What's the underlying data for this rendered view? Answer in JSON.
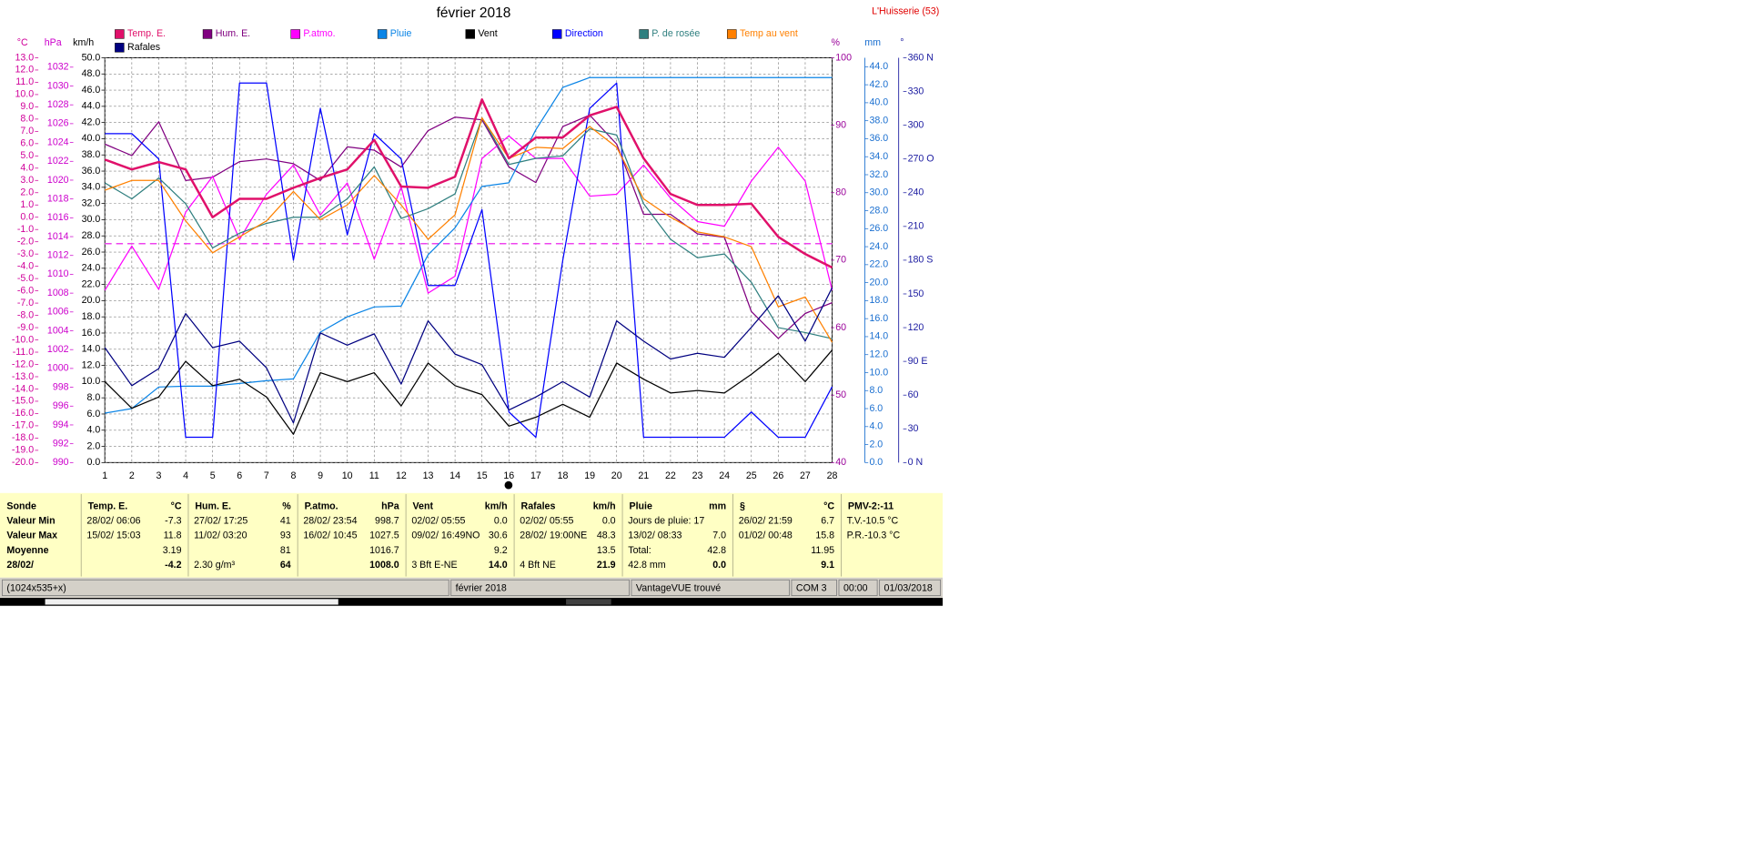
{
  "chart_data": {
    "type": "line",
    "title": "février 2018",
    "location": "L'Huisserie (53)",
    "grid": true,
    "x": [
      1,
      2,
      3,
      4,
      5,
      6,
      7,
      8,
      9,
      10,
      11,
      12,
      13,
      14,
      15,
      16,
      17,
      18,
      19,
      20,
      21,
      22,
      23,
      24,
      25,
      26,
      27,
      28
    ],
    "xlim": [
      1,
      28
    ],
    "xticks": [
      1,
      2,
      3,
      4,
      5,
      6,
      7,
      8,
      9,
      10,
      11,
      12,
      13,
      14,
      15,
      16,
      17,
      18,
      19,
      20,
      21,
      22,
      23,
      24,
      25,
      26,
      27,
      28
    ],
    "y_axes": [
      {
        "label": "°C",
        "color": "#d0009a",
        "lim": [
          -20,
          13
        ],
        "ticks": [
          {
            "value": -20,
            "label": "-20.0"
          },
          {
            "value": -19,
            "label": "-19.0"
          },
          {
            "value": -18,
            "label": "-18.0"
          },
          {
            "value": -17,
            "label": "-17.0"
          },
          {
            "value": -16,
            "label": "-16.0"
          },
          {
            "value": -15,
            "label": "-15.0"
          },
          {
            "value": -14,
            "label": "-14.0"
          },
          {
            "value": -13,
            "label": "-13.0"
          },
          {
            "value": -12,
            "label": "-12.0"
          },
          {
            "value": -11,
            "label": "-11.0"
          },
          {
            "value": -10,
            "label": "-10.0"
          },
          {
            "value": -9,
            "label": "-9.0"
          },
          {
            "value": -8,
            "label": "-8.0"
          },
          {
            "value": -7,
            "label": "-7.0"
          },
          {
            "value": -6,
            "label": "-6.0"
          },
          {
            "value": -5,
            "label": "-5.0"
          },
          {
            "value": -4,
            "label": "-4.0"
          },
          {
            "value": -3,
            "label": "-3.0"
          },
          {
            "value": -2,
            "label": "-2.0"
          },
          {
            "value": -1,
            "label": "-1.0"
          },
          {
            "value": 0,
            "label": "0.0"
          },
          {
            "value": 1,
            "label": "1.0"
          },
          {
            "value": 2,
            "label": "2.0"
          },
          {
            "value": 3,
            "label": "3.0"
          },
          {
            "value": 4,
            "label": "4.0"
          },
          {
            "value": 5,
            "label": "5.0"
          },
          {
            "value": 6,
            "label": "6.0"
          },
          {
            "value": 7,
            "label": "7.0"
          },
          {
            "value": 8,
            "label": "8.0"
          },
          {
            "value": 9,
            "label": "9.0"
          },
          {
            "value": 10,
            "label": "10.0"
          },
          {
            "value": 11,
            "label": "11.0"
          },
          {
            "value": 12,
            "label": "12.0"
          },
          {
            "value": 13,
            "label": "13.0"
          }
        ]
      },
      {
        "label": "hPa",
        "color": "#cc00cc",
        "lim": [
          990,
          1033
        ],
        "ticks": [
          990,
          992,
          994,
          996,
          998,
          1000,
          1002,
          1004,
          1006,
          1008,
          1010,
          1012,
          1014,
          1016,
          1018,
          1020,
          1022,
          1024,
          1026,
          1028,
          1030,
          1032
        ]
      },
      {
        "label": "km/h",
        "color": "#000000",
        "lim": [
          0,
          50
        ],
        "ticks": [
          {
            "value": 0,
            "label": "0.0"
          },
          {
            "value": 2,
            "label": "2.0"
          },
          {
            "value": 4,
            "label": "4.0"
          },
          {
            "value": 6,
            "label": "6.0"
          },
          {
            "value": 8,
            "label": "8.0"
          },
          {
            "value": 10,
            "label": "10.0"
          },
          {
            "value": 12,
            "label": "12.0"
          },
          {
            "value": 14,
            "label": "14.0"
          },
          {
            "value": 16,
            "label": "16.0"
          },
          {
            "value": 18,
            "label": "18.0"
          },
          {
            "value": 20,
            "label": "20.0"
          },
          {
            "value": 22,
            "label": "22.0"
          },
          {
            "value": 24,
            "label": "24.0"
          },
          {
            "value": 26,
            "label": "26.0"
          },
          {
            "value": 28,
            "label": "28.0"
          },
          {
            "value": 30,
            "label": "30.0"
          },
          {
            "value": 32,
            "label": "32.0"
          },
          {
            "value": 34,
            "label": "34.0"
          },
          {
            "value": 36,
            "label": "36.0"
          },
          {
            "value": 38,
            "label": "38.0"
          },
          {
            "value": 40,
            "label": "40.0"
          },
          {
            "value": 42,
            "label": "42.0"
          },
          {
            "value": 44,
            "label": "44.0"
          },
          {
            "value": 46,
            "label": "46.0"
          },
          {
            "value": 48,
            "label": "48.0"
          },
          {
            "value": 50,
            "label": "50.0"
          }
        ]
      },
      {
        "label": "%",
        "color": "#990099",
        "lim": [
          40,
          100
        ],
        "ticks": [
          40,
          50,
          60,
          70,
          80,
          90,
          100
        ]
      },
      {
        "label": "mm",
        "color": "#1a6fd0",
        "lim": [
          0,
          45
        ],
        "ticks": [
          {
            "value": 0,
            "label": "0.0"
          },
          {
            "value": 2,
            "label": "2.0"
          },
          {
            "value": 4,
            "label": "4.0"
          },
          {
            "value": 6,
            "label": "6.0"
          },
          {
            "value": 8,
            "label": "8.0"
          },
          {
            "value": 10,
            "label": "10.0"
          },
          {
            "value": 12,
            "label": "12.0"
          },
          {
            "value": 14,
            "label": "14.0"
          },
          {
            "value": 16,
            "label": "16.0"
          },
          {
            "value": 18,
            "label": "18.0"
          },
          {
            "value": 20,
            "label": "20.0"
          },
          {
            "value": 22,
            "label": "22.0"
          },
          {
            "value": 24,
            "label": "24.0"
          },
          {
            "value": 26,
            "label": "26.0"
          },
          {
            "value": 28,
            "label": "28.0"
          },
          {
            "value": 30,
            "label": "30.0"
          },
          {
            "value": 32,
            "label": "32.0"
          },
          {
            "value": 34,
            "label": "34.0"
          },
          {
            "value": 36,
            "label": "36.0"
          },
          {
            "value": 38,
            "label": "38.0"
          },
          {
            "value": 40,
            "label": "40.0"
          },
          {
            "value": 42,
            "label": "42.0"
          },
          {
            "value": 44,
            "label": "44.0"
          }
        ]
      },
      {
        "label": "°",
        "color": "#1a1aa0",
        "lim": [
          0,
          360
        ],
        "ticks": [
          {
            "value": 0,
            "label": "0   N"
          },
          {
            "value": 30,
            "label": "30"
          },
          {
            "value": 60,
            "label": "60"
          },
          {
            "value": 90,
            "label": "90  E"
          },
          {
            "value": 120,
            "label": "120"
          },
          {
            "value": 150,
            "label": "150"
          },
          {
            "value": 180,
            "label": "180 S"
          },
          {
            "value": 210,
            "label": "210"
          },
          {
            "value": 240,
            "label": "240"
          },
          {
            "value": 270,
            "label": "270 O"
          },
          {
            "value": 300,
            "label": "300"
          },
          {
            "value": 330,
            "label": "330"
          },
          {
            "value": 360,
            "label": "360 N"
          }
        ]
      }
    ],
    "reference_line": {
      "axis": 1,
      "value": 1013.25,
      "color": "#ee44ee"
    },
    "series": [
      {
        "name": "Temp. E.",
        "color": "#e0106a",
        "axis": 0,
        "width": 2,
        "values": [
          4.7,
          3.9,
          4.5,
          3.9,
          0.0,
          1.5,
          1.5,
          2.4,
          3.2,
          3.9,
          6.3,
          2.5,
          2.4,
          3.3,
          9.6,
          4.8,
          6.5,
          6.5,
          8.3,
          9.0,
          4.8,
          1.9,
          1.0,
          1.0,
          1.1,
          -1.6,
          -3.0,
          -4.1
        ]
      },
      {
        "name": "Hum. E.",
        "color": "#800080",
        "axis": 3,
        "width": 1,
        "values": [
          87.2,
          85.5,
          90.5,
          81.8,
          82.3,
          84.6,
          85.0,
          84.3,
          81.8,
          86.8,
          86.3,
          83.8,
          89.2,
          91.2,
          90.8,
          83.8,
          81.5,
          89.8,
          91.5,
          87.2,
          76.8,
          76.8,
          73.9,
          73.4,
          62.4,
          58.4,
          62.1,
          63.7
        ]
      },
      {
        "name": "P.atmo.",
        "color": "#ff00ff",
        "axis": 1,
        "width": 1,
        "values": [
          1008.3,
          1013.0,
          1008.4,
          1016.6,
          1020.4,
          1013.7,
          1018.5,
          1021.6,
          1016.3,
          1019.7,
          1011.6,
          1019.3,
          1008.0,
          1009.8,
          1022.3,
          1024.7,
          1022.3,
          1022.3,
          1018.3,
          1018.5,
          1021.6,
          1018.1,
          1015.6,
          1015.1,
          1019.9,
          1023.5,
          1019.9,
          1008.3
        ]
      },
      {
        "name": "Pluie",
        "color": "#0a84e6",
        "axis": 4,
        "width": 1,
        "values": [
          5.5,
          6.0,
          8.4,
          8.5,
          8.5,
          8.8,
          9.1,
          9.3,
          14.5,
          16.2,
          17.3,
          17.4,
          23.1,
          26.1,
          30.7,
          31.1,
          37.0,
          41.7,
          42.8,
          42.8,
          42.8,
          42.8,
          42.8,
          42.8,
          42.8,
          42.8,
          42.8,
          42.8
        ]
      },
      {
        "name": "Vent",
        "color": "#000000",
        "axis": 2,
        "width": 1,
        "values": [
          10.0,
          6.7,
          8.1,
          12.5,
          9.5,
          10.3,
          8.1,
          3.5,
          11.1,
          10.0,
          11.1,
          7.0,
          12.3,
          9.5,
          8.4,
          4.5,
          5.6,
          7.2,
          5.6,
          12.3,
          10.3,
          8.6,
          8.9,
          8.6,
          10.9,
          13.5,
          10.0,
          13.9
        ]
      },
      {
        "name": "Direction",
        "color": "#0000ff",
        "axis": 5,
        "width": 1,
        "values": [
          292.5,
          292.5,
          270,
          22.5,
          22.5,
          337.5,
          337.5,
          180,
          315,
          202.5,
          292.5,
          270,
          157.5,
          157.5,
          225,
          45,
          22.5,
          180,
          315,
          337.5,
          22.5,
          22.5,
          22.5,
          22.5,
          45,
          22.5,
          22.5,
          67.5
        ]
      },
      {
        "name": "P. de rosée",
        "color": "#2f7f7f",
        "axis": 0,
        "width": 1,
        "values": [
          2.8,
          1.5,
          3.2,
          1.1,
          -2.5,
          -1.3,
          -0.5,
          0.0,
          0.0,
          1.5,
          4.1,
          -0.1,
          0.7,
          1.9,
          8.1,
          4.3,
          4.8,
          5.0,
          7.2,
          6.7,
          1.1,
          -1.8,
          -3.3,
          -3.0,
          -5.3,
          -9.0,
          -9.4,
          -9.9
        ]
      },
      {
        "name": "Temp au vent",
        "color": "#ff8000",
        "axis": 0,
        "width": 1,
        "values": [
          2.2,
          3.0,
          3.0,
          -0.3,
          -2.9,
          -1.6,
          -0.3,
          2.1,
          -0.2,
          1.0,
          3.4,
          1.0,
          -1.8,
          0.2,
          8.1,
          4.8,
          5.7,
          5.6,
          7.4,
          5.7,
          1.5,
          0.0,
          -1.2,
          -1.6,
          -2.4,
          -7.3,
          -6.5,
          -10.2
        ]
      },
      {
        "name": "Rafales",
        "color": "#000080",
        "axis": 2,
        "width": 1,
        "values": [
          14.2,
          9.5,
          11.6,
          18.4,
          14.2,
          15.0,
          11.7,
          4.9,
          16.0,
          14.5,
          15.9,
          9.7,
          17.5,
          13.4,
          12.1,
          6.5,
          8.1,
          10.0,
          8.1,
          17.5,
          15.0,
          12.8,
          13.5,
          13.0,
          16.7,
          20.6,
          15.0,
          21.6
        ]
      }
    ]
  },
  "table": {
    "columns": [
      {
        "name": "Sonde"
      },
      {
        "name": "Temp. E.",
        "unit": "°C"
      },
      {
        "name": "Hum. E.",
        "unit": "%"
      },
      {
        "name": "P.atmo.",
        "unit": "hPa"
      },
      {
        "name": "Vent",
        "unit": "km/h"
      },
      {
        "name": "Rafales",
        "unit": "km/h"
      },
      {
        "name": "Pluie",
        "unit": "mm"
      },
      {
        "name": "§",
        "unit": "°C"
      },
      {
        "name": "PMV-2:-11"
      }
    ],
    "rows": [
      {
        "name": "Valeur Min",
        "cells": [
          {
            "label": "28/02/  06:06",
            "value": "-7.3"
          },
          {
            "label": "27/02/  17:25",
            "value": "41"
          },
          {
            "label": "28/02/  23:54",
            "value": "998.7"
          },
          {
            "label": "02/02/  05:55",
            "value": "0.0"
          },
          {
            "label": "02/02/  05:55",
            "value": "0.0"
          },
          {
            "label": "Jours de pluie: 17"
          },
          {
            "label": "26/02/  21:59",
            "value": "6.7"
          },
          {
            "label": "T.V.-10.5 °C"
          }
        ]
      },
      {
        "name": "Valeur Max",
        "cells": [
          {
            "label": "15/02/  15:03",
            "value": "11.8"
          },
          {
            "label": "11/02/  03:20",
            "value": "93"
          },
          {
            "label": "16/02/  10:45",
            "value": "1027.5"
          },
          {
            "label": "09/02/  16:49NO",
            "value": "30.6"
          },
          {
            "label": "28/02/  19:00NE",
            "value": "48.3"
          },
          {
            "label": "13/02/  08:33",
            "value": "7.0"
          },
          {
            "label": "01/02/  00:48",
            "value": "15.8"
          },
          {
            "label": "P.R.-10.3 °C"
          }
        ]
      },
      {
        "name": "Moyenne",
        "cells": [
          {
            "value": "3.19"
          },
          {
            "value": "81"
          },
          {
            "value": "1016.7"
          },
          {
            "value": "9.2"
          },
          {
            "value": "13.5"
          },
          {
            "label": "Total:",
            "value": "42.8"
          },
          {
            "value": "11.95"
          },
          null
        ]
      },
      {
        "name": "28/02/",
        "bold": true,
        "cells": [
          {
            "value": "-4.2"
          },
          {
            "label": "2.30 g/m³",
            "value": "64"
          },
          {
            "value": "1008.0"
          },
          {
            "label": "3 Bft E-NE",
            "value": "14.0"
          },
          {
            "label": "4 Bft NE",
            "value": "21.9"
          },
          {
            "label": "42.8 mm",
            "value": "0.0"
          },
          {
            "value": "9.1"
          },
          null
        ]
      }
    ]
  },
  "status_bar": [
    "(1024x535+x)",
    "février 2018",
    "VantageVUE trouvé",
    "COM 3",
    "00:00",
    "01/03/2018"
  ]
}
